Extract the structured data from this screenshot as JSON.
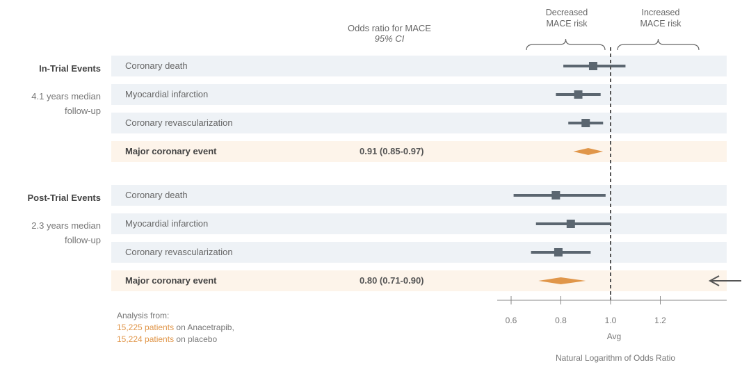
{
  "chart_data": {
    "type": "forest",
    "header": {
      "col_title": "Odds ratio for MACE",
      "col_subtitle": "95% CI",
      "decreased_line1": "Decreased",
      "decreased_line2": "MACE risk",
      "increased_line1": "Increased",
      "increased_line2": "MACE risk"
    },
    "xlim": [
      0.5,
      1.5
    ],
    "reference": 1.0,
    "ticks": [
      "0.6",
      "0.8",
      "1.0",
      "1.2"
    ],
    "tick_values": [
      0.6,
      0.8,
      1.0,
      1.2
    ],
    "x_sublabel": "Avg",
    "xlabel": "Natural Logarithm of Odds Ratio",
    "groups": [
      {
        "title": "In-Trial Events",
        "subtitle_line1": "4.1 years median",
        "subtitle_line2": "follow-up",
        "rows": [
          {
            "label": "Coronary death",
            "or": 0.93,
            "lo": 0.81,
            "hi": 1.06,
            "type": "point"
          },
          {
            "label": "Myocardial infarction",
            "or": 0.87,
            "lo": 0.78,
            "hi": 0.96,
            "type": "point"
          },
          {
            "label": "Coronary revascularization",
            "or": 0.9,
            "lo": 0.83,
            "hi": 0.97,
            "type": "point"
          },
          {
            "label": "Major coronary event",
            "or": 0.91,
            "lo": 0.85,
            "hi": 0.97,
            "value_text": "0.91  (0.85-0.97)",
            "type": "summary"
          }
        ]
      },
      {
        "title": "Post-Trial Events",
        "subtitle_line1": "2.3 years median",
        "subtitle_line2": "follow-up",
        "rows": [
          {
            "label": "Coronary death",
            "or": 0.78,
            "lo": 0.61,
            "hi": 0.98,
            "type": "point"
          },
          {
            "label": "Myocardial infarction",
            "or": 0.84,
            "lo": 0.7,
            "hi": 1.0,
            "type": "point"
          },
          {
            "label": "Coronary revascularization",
            "or": 0.79,
            "lo": 0.68,
            "hi": 0.92,
            "type": "point"
          },
          {
            "label": "Major coronary event",
            "or": 0.8,
            "lo": 0.71,
            "hi": 0.9,
            "value_text": "0.80  (0.71-0.90)",
            "type": "summary"
          }
        ]
      }
    ],
    "footnote": {
      "line1": "Analysis from:",
      "line2_highlight": "15,225 patients",
      "line2_rest": " on Anacetrapib,",
      "line3_highlight": "15,224 patients",
      "line3_rest": " on placebo"
    },
    "colors": {
      "point": "#5b6670",
      "summary": "#e0964a",
      "reference_line": "#555555",
      "arrow": "#555555"
    }
  }
}
